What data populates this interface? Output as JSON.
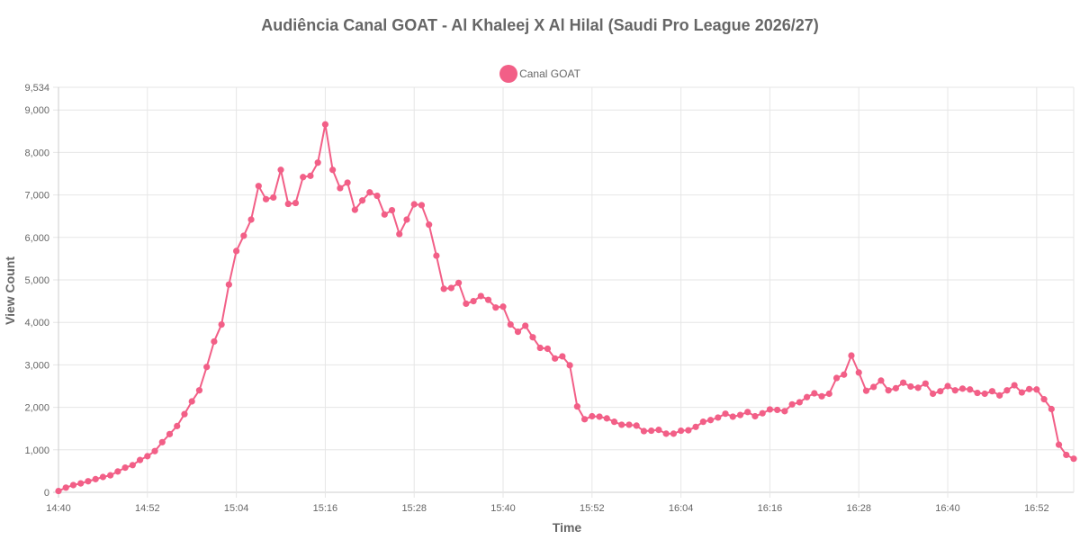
{
  "chart_data": {
    "type": "line",
    "title": "Audiência Canal GOAT - Al Khaleej X Al Hilal (Saudi Pro League 2026/27)",
    "xlabel": "Time",
    "ylabel": "View Count",
    "ylim": [
      0,
      9534
    ],
    "y_ticks": [
      "0",
      "1,000",
      "2,000",
      "3,000",
      "4,000",
      "5,000",
      "6,000",
      "7,000",
      "8,000",
      "9,000",
      "9,534"
    ],
    "x_start": "14:40",
    "x_step_minutes": 1,
    "x_ticks": [
      "14:40",
      "14:52",
      "15:04",
      "15:16",
      "15:28",
      "15:40",
      "15:52",
      "16:04",
      "16:16",
      "16:28",
      "16:40",
      "16:52"
    ],
    "grid": true,
    "legend_position": "top",
    "series": [
      {
        "name": "Canal GOAT",
        "color": "#f25f87",
        "values": [
          30,
          110,
          170,
          210,
          260,
          310,
          360,
          400,
          490,
          580,
          640,
          760,
          850,
          970,
          1180,
          1370,
          1560,
          1840,
          2140,
          2400,
          2950,
          3550,
          3950,
          4890,
          5680,
          6040,
          6420,
          7210,
          6900,
          6940,
          7590,
          6790,
          6810,
          7420,
          7450,
          7760,
          8660,
          7590,
          7160,
          7290,
          6650,
          6870,
          7060,
          6980,
          6540,
          6640,
          6080,
          6420,
          6780,
          6760,
          6300,
          5570,
          4790,
          4810,
          4930,
          4440,
          4500,
          4620,
          4530,
          4350,
          4370,
          3950,
          3780,
          3920,
          3650,
          3400,
          3380,
          3150,
          3200,
          2990,
          2020,
          1720,
          1790,
          1780,
          1740,
          1660,
          1590,
          1590,
          1570,
          1440,
          1450,
          1470,
          1380,
          1380,
          1450,
          1460,
          1540,
          1660,
          1700,
          1760,
          1850,
          1780,
          1820,
          1890,
          1790,
          1860,
          1950,
          1940,
          1910,
          2070,
          2120,
          2240,
          2330,
          2260,
          2320,
          2690,
          2770,
          3220,
          2820,
          2390,
          2480,
          2630,
          2400,
          2450,
          2580,
          2490,
          2460,
          2560,
          2320,
          2380,
          2500,
          2400,
          2440,
          2420,
          2340,
          2320,
          2380,
          2280,
          2400,
          2520,
          2350,
          2430,
          2420,
          2190,
          1960,
          1120,
          880,
          790
        ]
      }
    ]
  }
}
